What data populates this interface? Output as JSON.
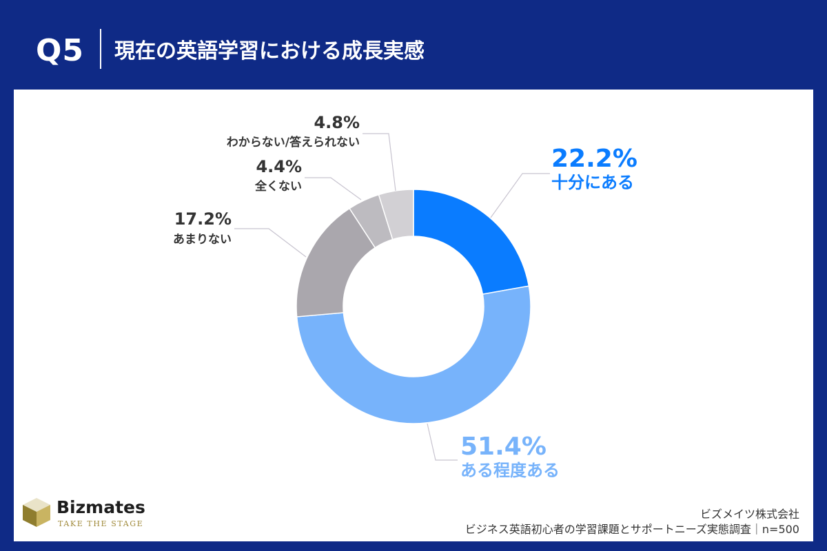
{
  "header": {
    "question_no": "Q5",
    "title": "現在の英語学習における成長実感"
  },
  "chart_data": {
    "type": "pie",
    "style": "donut",
    "categories": [
      "十分にある",
      "ある程度ある",
      "あまりない",
      "全くない",
      "わからない/答えられない"
    ],
    "values": [
      22.2,
      51.4,
      17.2,
      4.4,
      4.8
    ],
    "value_labels": [
      "22.2%",
      "51.4%",
      "17.2%",
      "4.4%",
      "4.8%"
    ],
    "colors": [
      "#0a7cff",
      "#77b3fb",
      "#aaa7ad",
      "#bdbbc0",
      "#d2d0d4"
    ],
    "label_colors": [
      "#0a7cff",
      "#77b3fb",
      "#333333",
      "#333333",
      "#333333"
    ]
  },
  "footer": {
    "brand_name": "Bizmates",
    "brand_tagline": "TAKE THE STAGE",
    "logo_icon": "cube-logo-icon",
    "company": "ビズメイツ株式会社",
    "survey": "ビジネス英語初心者の学習課題とサポートニーズ実態調査｜n=500"
  }
}
